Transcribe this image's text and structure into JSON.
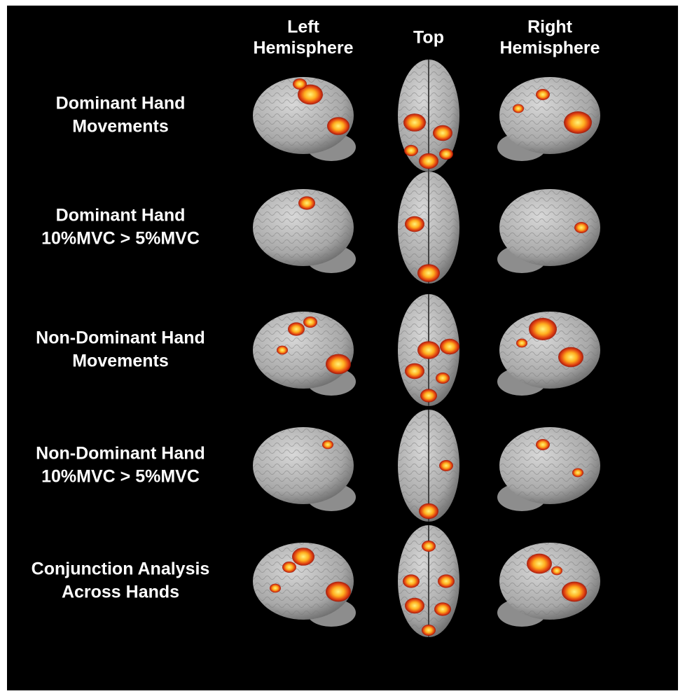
{
  "columns": [
    {
      "lines": [
        "Left",
        "Hemisphere"
      ]
    },
    {
      "lines": [
        "Top"
      ]
    },
    {
      "lines": [
        "Right",
        "Hemisphere"
      ]
    }
  ],
  "rows": [
    {
      "lines": [
        "Dominant Hand",
        "Movements"
      ]
    },
    {
      "lines": [
        "Dominant Hand",
        "10%MVC > 5%MVC"
      ]
    },
    {
      "lines": [
        "Non-Dominant Hand",
        "Movements"
      ]
    },
    {
      "lines": [
        "Non-Dominant Hand",
        "10%MVC > 5%MVC"
      ]
    },
    {
      "lines": [
        "Conjunction Analysis",
        "Across Hands"
      ]
    }
  ]
}
